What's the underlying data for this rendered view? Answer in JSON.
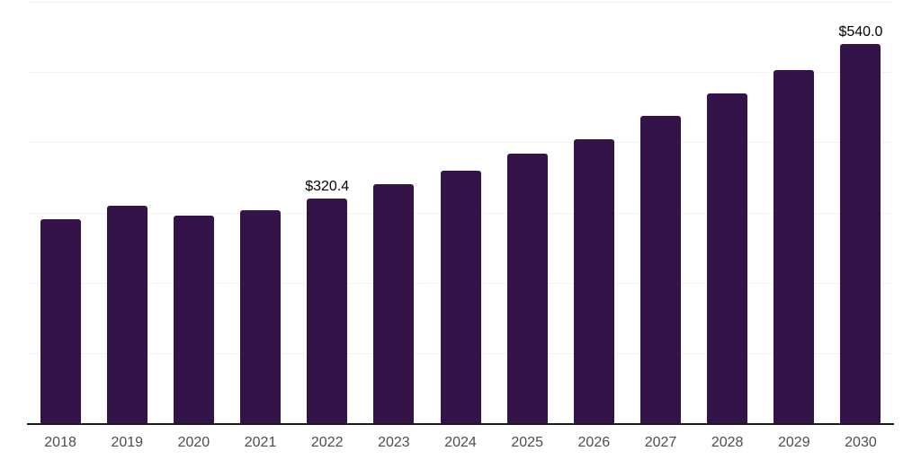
{
  "chart_data": {
    "type": "bar",
    "title": "",
    "xlabel": "",
    "ylabel": "",
    "categories": [
      "2018",
      "2019",
      "2020",
      "2021",
      "2022",
      "2023",
      "2024",
      "2025",
      "2026",
      "2027",
      "2028",
      "2029",
      "2030"
    ],
    "values": [
      291,
      309,
      296,
      303,
      320.4,
      340,
      360,
      384,
      404,
      438,
      470,
      503,
      540
    ],
    "data_labels": {
      "2022": "$320.4",
      "2030": "$540.0"
    },
    "ylim": [
      0,
      600
    ],
    "gridline_step": 100,
    "grid": true,
    "legend": "none",
    "colors": {
      "bar": "#341349",
      "gridline": "#f3f2f4",
      "axis_line": "#1a1a1a",
      "tick_label": "#4d4d4d",
      "data_label": "#000000",
      "background": "#ffffff"
    }
  }
}
